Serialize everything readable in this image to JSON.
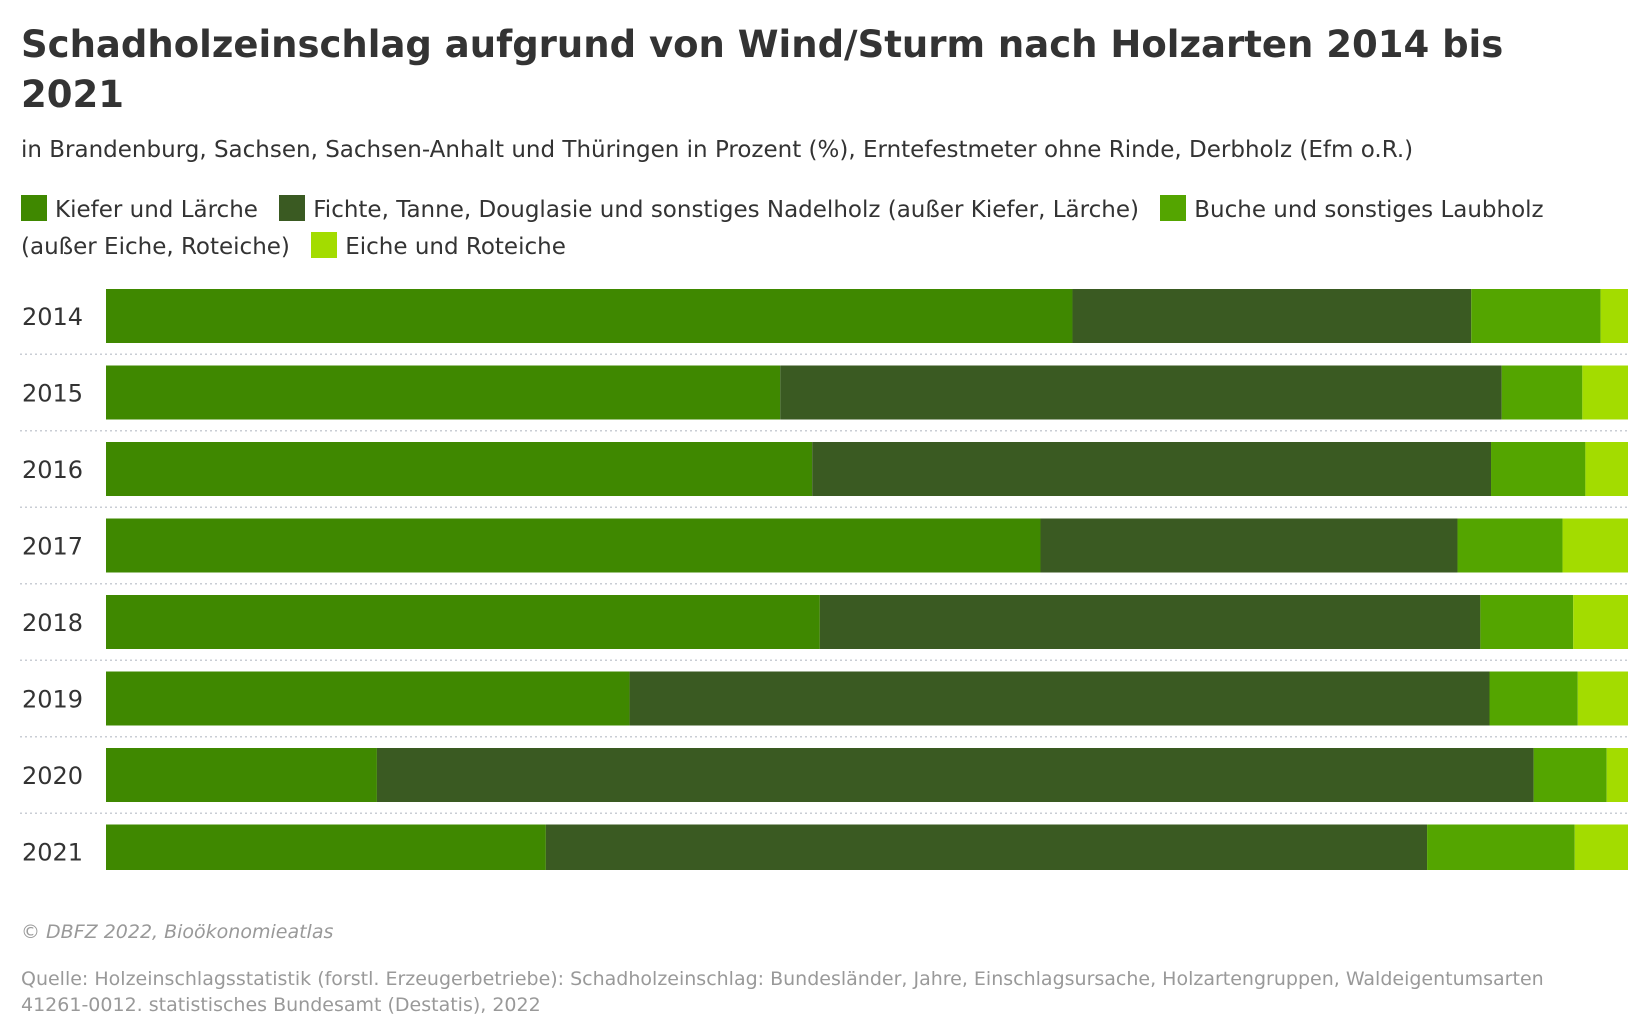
{
  "header": {
    "title": "Schadholzeinschlag aufgrund von Wind/Sturm nach Holzarten 2014 bis 2021",
    "subtitle": "in Brandenburg, Sachsen, Sachsen-Anhalt und Thüringen in Prozent (%), Erntefestmeter ohne Rinde, Derbholz (Efm o.R.)"
  },
  "footer": {
    "credit": "© DBFZ 2022, Bioökonomieatlas",
    "source": "Quelle: Holzeinschlagsstatistik (forstl. Erzeugerbetriebe): Schadholzeinschlag: Bundesländer, Jahre, Einschlagsursache, Holzartengruppen, Waldeigentumsarten 41261-0012. statistisches Bundesamt (Destatis), 2022"
  },
  "colors": {
    "Kiefer und Lärche": "#3f8800",
    "Fichte, Tanne, Douglasie und sonstiges Nadelholz (außer Kiefer, Lärche)": "#3a5a22",
    "Buche und sonstiges Laubholz (außer Eiche, Roteiche)": "#54a500",
    "Eiche und Roteiche": "#a3dc00",
    "separator": "#c9cdd4",
    "text": "#333333",
    "muted": "#999999"
  },
  "chart_data": {
    "type": "bar",
    "orientation": "horizontal",
    "stacked": true,
    "unit": "%",
    "xlim": [
      0,
      100
    ],
    "grid": false,
    "legend_position": "top",
    "categories": [
      "2014",
      "2015",
      "2016",
      "2017",
      "2018",
      "2019",
      "2020",
      "2021"
    ],
    "series": [
      {
        "name": "Kiefer und Lärche",
        "values": [
          63.5,
          44.3,
          46.4,
          61.4,
          46.9,
          34.4,
          17.8,
          28.9
        ]
      },
      {
        "name": "Fichte, Tanne, Douglasie und sonstiges Nadelholz (außer Kiefer, Lärche)",
        "values": [
          26.2,
          47.4,
          44.6,
          27.4,
          43.4,
          56.5,
          76.0,
          57.9
        ]
      },
      {
        "name": "Buche und sonstiges Laubholz (außer Eiche, Roteiche)",
        "values": [
          8.5,
          5.3,
          6.2,
          6.9,
          6.1,
          5.8,
          4.8,
          9.7
        ]
      },
      {
        "name": "Eiche und Roteiche",
        "values": [
          1.8,
          3.0,
          2.8,
          4.3,
          3.6,
          3.3,
          1.4,
          3.5
        ]
      }
    ]
  }
}
